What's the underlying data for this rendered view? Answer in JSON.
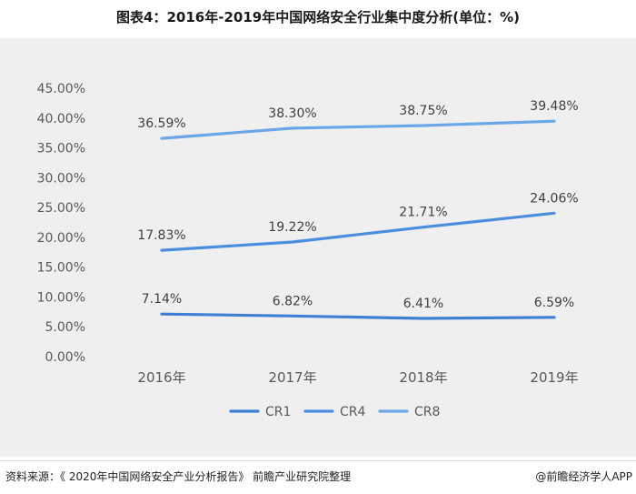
{
  "title": "图表4：2016年-2019年中国网络安全行业集中度分析(单位：%)",
  "source": "资料来源：《 2020年中国网络安全产业分析报告》 前瞻产业研究院整理",
  "brand": "@前瞻经济学人APP",
  "colors": {
    "CR1": "#3d7fd4",
    "CR4": "#4a8fde",
    "CR8": "#6aa7e8"
  },
  "chart_data": {
    "type": "line",
    "title": "图表4：2016年-2019年中国网络安全行业集中度分析(单位：%)",
    "categories": [
      "2016年",
      "2017年",
      "2018年",
      "2019年"
    ],
    "series": [
      {
        "name": "CR1",
        "values": [
          7.14,
          6.82,
          6.41,
          6.59
        ],
        "labels": [
          "7.14%",
          "6.82%",
          "6.41%",
          "6.59%"
        ]
      },
      {
        "name": "CR4",
        "values": [
          17.83,
          19.22,
          21.71,
          24.06
        ],
        "labels": [
          "17.83%",
          "19.22%",
          "21.71%",
          "24.06%"
        ]
      },
      {
        "name": "CR8",
        "values": [
          36.59,
          38.3,
          38.75,
          39.48
        ],
        "labels": [
          "36.59%",
          "38.30%",
          "38.75%",
          "39.48%"
        ]
      }
    ],
    "ylim": [
      0,
      45
    ],
    "yticks": [
      "0.00%",
      "5.00%",
      "10.00%",
      "15.00%",
      "20.00%",
      "25.00%",
      "30.00%",
      "35.00%",
      "40.00%",
      "45.00%"
    ],
    "legend": "bottom",
    "grid": false
  }
}
